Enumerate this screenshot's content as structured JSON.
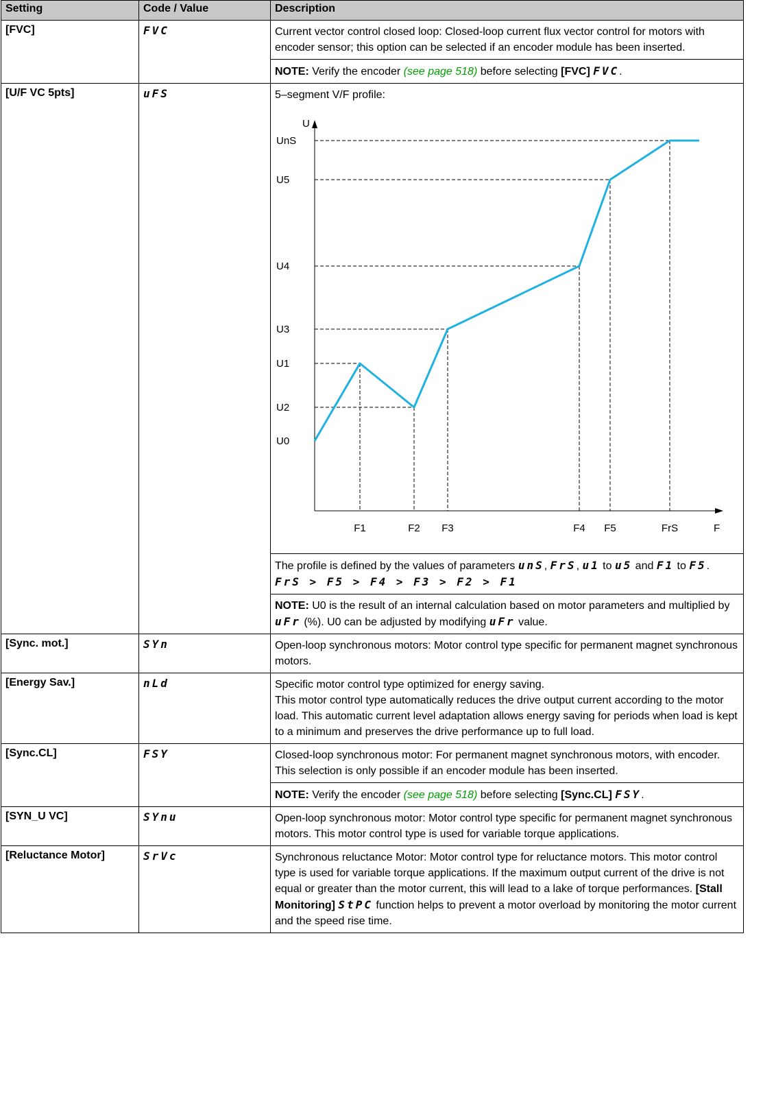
{
  "table": {
    "header": [
      "Setting",
      "Code / Value",
      "Description"
    ],
    "rows": [
      {
        "setting": "[FVC]",
        "code": "FVC",
        "description": [
          [
            [
              "Current vector control closed loop: Closed-loop current flux vector control for motors with encoder sensor; this option can be selected if an encoder module has been inserted."
            ]
          ],
          [
            [
              {
                "text": "NOTE:",
                "style": "bold"
              },
              " Verify the encoder ",
              {
                "text": "(see page 518)",
                "style": "link"
              },
              " before selecting ",
              {
                "text": "[FVC]",
                "style": "bold"
              },
              " ",
              {
                "text": "FVC",
                "style": "code"
              },
              "."
            ]
          ]
        ]
      },
      {
        "setting": "[U/F VC 5pts]",
        "code": "uFS",
        "description": [
          [
            [
              "5–segment V/F profile:"
            ]
          ],
          {
            "diagram": {
              "y_axis": "U",
              "x_axis": "F",
              "y_labels": [
                "UnS",
                "U5",
                "U4",
                "U3",
                "U1",
                "U2",
                "U0"
              ],
              "x_labels": [
                "F1",
                "F2",
                "F3",
                "F4",
                "F5",
                "FrS"
              ]
            }
          },
          [
            [
              "The profile is defined by the values of parameters ",
              {
                "text": "unS",
                "style": "code"
              },
              ", ",
              {
                "text": "FrS",
                "style": "code"
              },
              ", ",
              {
                "text": "u1",
                "style": "code"
              },
              " to ",
              {
                "text": "u5",
                "style": "code"
              },
              " and ",
              {
                "text": "F1",
                "style": "code"
              },
              " to ",
              {
                "text": "F5",
                "style": "code"
              },
              "."
            ],
            [
              {
                "text": "FrS > F5 > F4 > F3 > F2 > F1",
                "style": "code"
              }
            ]
          ],
          [
            [
              {
                "text": "NOTE:",
                "style": "bold"
              },
              " U0 is the result of an internal calculation based on motor parameters and multiplied by ",
              {
                "text": "uFr",
                "style": "code"
              },
              " (%). U0 can be adjusted by modifying ",
              {
                "text": "uFr",
                "style": "code"
              },
              " value."
            ]
          ]
        ]
      },
      {
        "setting": "[Sync. mot.]",
        "code": "SYn",
        "description": [
          [
            [
              "Open-loop synchronous motors: Motor control type specific for permanent magnet synchronous motors."
            ]
          ]
        ]
      },
      {
        "setting": "[Energy Sav.]",
        "code": "nLd",
        "description": [
          [
            [
              "Specific motor control type optimized for energy saving."
            ],
            [
              "This motor control type automatically reduces the drive output current according to the motor load. This automatic current level adaptation allows energy saving for periods when load is kept to a minimum and preserves the drive performance up to full load."
            ]
          ]
        ]
      },
      {
        "setting": "[Sync.CL]",
        "code": "FSY",
        "description": [
          [
            [
              "Closed-loop synchronous motor: For permanent magnet synchronous motors, with encoder. This selection is only possible if an encoder module has been inserted."
            ]
          ],
          [
            [
              {
                "text": "NOTE:",
                "style": "bold"
              },
              " Verify the encoder ",
              {
                "text": "(see page 518)",
                "style": "link"
              },
              " before selecting ",
              {
                "text": "[Sync.CL]",
                "style": "bold"
              },
              " ",
              {
                "text": "FSY",
                "style": "code"
              },
              "."
            ]
          ]
        ]
      },
      {
        "setting": "[SYN_U VC]",
        "code": "SYnu",
        "description": [
          [
            [
              "Open-loop synchronous motor: Motor control type specific for permanent magnet synchronous motors. This motor control type is used for variable torque applications."
            ]
          ]
        ]
      },
      {
        "setting": "[Reluctance Motor]",
        "code": "SrVc",
        "description": [
          [
            [
              "Synchronous reluctance Motor: Motor control type for reluctance motors. This motor control type is used for variable torque applications. If the maximum output current of the drive is not equal or greater than the motor current, this will lead to a lake of torque performances. ",
              {
                "text": "[Stall Monitoring]",
                "style": "bold"
              },
              " ",
              {
                "text": "StPC",
                "style": "code"
              },
              " function helps to prevent a motor overload by monitoring the motor current and the speed rise time."
            ]
          ]
        ]
      }
    ]
  }
}
